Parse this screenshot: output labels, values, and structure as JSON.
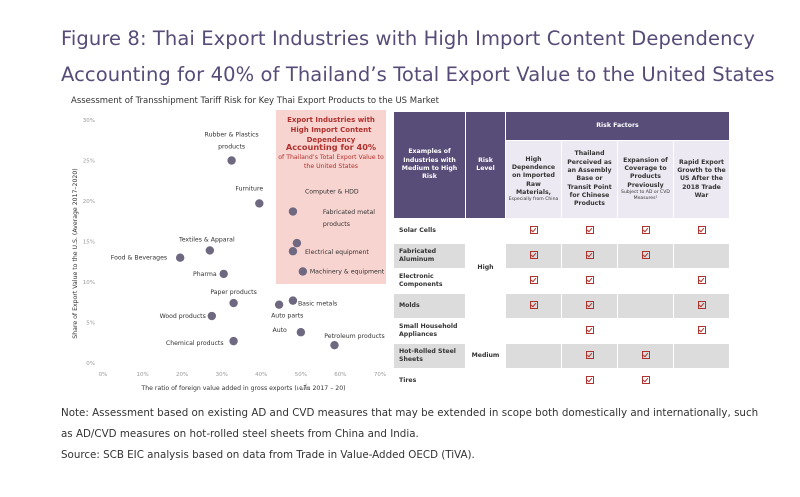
{
  "title_line1": "Figure 8: Thai Export Industries with High Import Content Dependency",
  "title_line2": "Accounting for 40% of Thailand’s Total Export Value to the United States",
  "subtitle": "Assessment of Transshipment Tariff Risk for Key Thai Export Products to the US Market",
  "chart_data": {
    "type": "scatter",
    "xlabel": "The ratio of foreign value added in gross exports (เฉลี่ย 2017 – 20)",
    "ylabel": "Share of Export Value to the U.S. (Average 2017–2020)",
    "xlim": [
      0,
      70
    ],
    "ylim": [
      0,
      30
    ],
    "xticks": [
      "0%",
      "10%",
      "20%",
      "30%",
      "40%",
      "50%",
      "60%",
      "70%"
    ],
    "yticks": [
      "0%",
      "5%",
      "10%",
      "15%",
      "20%",
      "25%",
      "30%"
    ],
    "grid": false,
    "highlight_band": {
      "x": [
        43.5,
        70
      ],
      "y": [
        8.8,
        30
      ],
      "color": "#F8D4D0"
    },
    "points": [
      {
        "label": "Rubber & Plastics products",
        "x": 32.5,
        "y": 25.0
      },
      {
        "label": "Furniture",
        "x": 39.5,
        "y": 19.7
      },
      {
        "label": "Computer & HDD",
        "x": 48.0,
        "y": 18.7
      },
      {
        "label": "Fabricated metal products",
        "x": 49.0,
        "y": 14.8
      },
      {
        "label": "Electrical equipment",
        "x": 48.0,
        "y": 13.8
      },
      {
        "label": "Machinery & equipment",
        "x": 50.5,
        "y": 11.3
      },
      {
        "label": "Textiles & Apparal",
        "x": 27.0,
        "y": 13.9
      },
      {
        "label": "Food & Beverages",
        "x": 19.5,
        "y": 13.0
      },
      {
        "label": "Pharma",
        "x": 30.5,
        "y": 11.0
      },
      {
        "label": "Paper products",
        "x": 33.0,
        "y": 7.4
      },
      {
        "label": "Wood products",
        "x": 27.5,
        "y": 5.8
      },
      {
        "label": "Auto parts",
        "x": 44.5,
        "y": 7.2
      },
      {
        "label": "Basic metals",
        "x": 48.0,
        "y": 7.7
      },
      {
        "label": "Auto",
        "x": 50.0,
        "y": 3.8
      },
      {
        "label": "Chemical products",
        "x": 33.0,
        "y": 2.7
      },
      {
        "label": "Petroleum products",
        "x": 58.5,
        "y": 2.2
      }
    ]
  },
  "highlight_box": {
    "title": "Export Industries with High Import Content Dependency",
    "value": "Accounting for 40%",
    "detail": "of Thailand’s Total Export Value to the United States"
  },
  "table": {
    "col_industry": "Examples of Industries with Medium to High Risk",
    "col_level": "Risk Level",
    "col_group": "Risk Factors",
    "factors": [
      {
        "main": "High Dependence on Imported Raw Materials,",
        "sub": "Especially from China"
      },
      {
        "main": "Thailand Perceived as an Assembly Base or Transit Point for Chinese Products",
        "sub": ""
      },
      {
        "main": "Expansion of Coverage to Products Previously",
        "sub": "Subject to AD or CVD Measures¹"
      },
      {
        "main": "Rapid Export Growth to the US After the 2018 Trade War",
        "sub": ""
      }
    ],
    "rows": [
      {
        "industry": "Solar Cells",
        "checks": [
          true,
          true,
          true,
          true
        ]
      },
      {
        "industry": "Fabricated Aluminum",
        "checks": [
          true,
          true,
          true,
          false
        ]
      },
      {
        "industry": "Electronic Components",
        "checks": [
          true,
          true,
          false,
          true
        ]
      },
      {
        "industry": "Molds",
        "checks": [
          true,
          true,
          false,
          true
        ]
      },
      {
        "industry": "Small Household Appliances",
        "checks": [
          false,
          true,
          false,
          true
        ]
      },
      {
        "industry": "Hot-Rolled Steel Sheets",
        "checks": [
          false,
          true,
          true,
          false
        ]
      },
      {
        "industry": "Tires",
        "checks": [
          false,
          true,
          true,
          false
        ]
      }
    ],
    "levels": [
      {
        "label": "High",
        "rows": 4
      },
      {
        "label": "Medium",
        "rows": 3
      }
    ]
  },
  "notes": [
    "Note: Assessment based on existing AD and CVD measures that may be extended in scope both domestically and internationally, such",
    "as AD/CVD measures on hot-rolled steel sheets from China and India.",
    "Source: SCB EIC analysis based on data from Trade in Value-Added OECD (TiVA)."
  ],
  "colors": {
    "title": "#574B78",
    "header": "#584C78",
    "header_light": "#EDE9F2",
    "gray_row": "#DCDCDC",
    "point": "#6E6880",
    "check": "#B0322E"
  }
}
